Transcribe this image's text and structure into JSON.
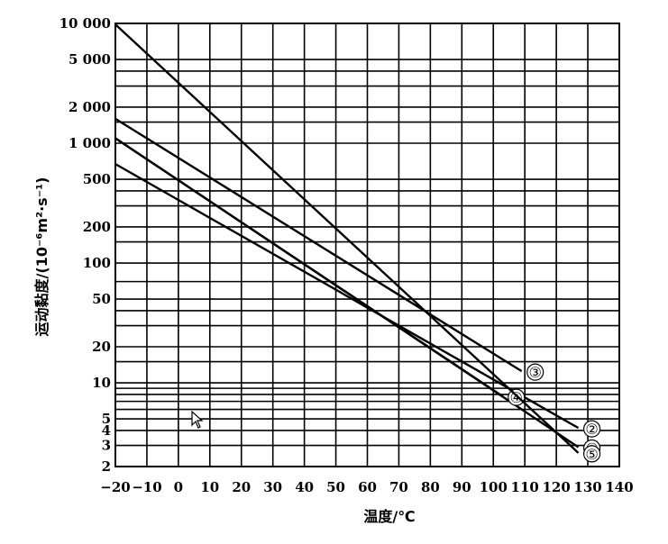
{
  "chart_data": {
    "type": "line",
    "title": "",
    "xlabel": "温度/℃",
    "ylabel": "运动黏度/(10⁻⁶m²·s⁻¹)",
    "y_scale": "log",
    "grid": true,
    "xlim": [
      -20,
      140
    ],
    "ylim": [
      2,
      10000
    ],
    "x_ticks": [
      -20,
      -10,
      0,
      10,
      20,
      30,
      40,
      50,
      60,
      70,
      80,
      90,
      100,
      110,
      120,
      130,
      140
    ],
    "x_tick_labels": [
      "−20",
      "−10",
      "0",
      "10",
      "20",
      "30",
      "40",
      "50",
      "60",
      "70",
      "80",
      "90",
      "100",
      "110",
      "120",
      "130",
      "140"
    ],
    "y_ticks": [
      2,
      3,
      4,
      5,
      10,
      20,
      50,
      100,
      200,
      500,
      1000,
      2000,
      5000,
      10000
    ],
    "y_tick_labels": [
      "2",
      "3",
      "4",
      "5",
      "10",
      "20",
      "50",
      "100",
      "200",
      "500",
      "1 000",
      "2 000",
      "5 000",
      "10 000"
    ],
    "y_gridlines": [
      2,
      3,
      4,
      5,
      6,
      7,
      8,
      9,
      10,
      15,
      20,
      30,
      40,
      50,
      70,
      100,
      150,
      200,
      300,
      400,
      500,
      1000,
      1500,
      2000,
      3000,
      4000,
      5000,
      10000
    ],
    "series": [
      {
        "name": "①",
        "x": [
          -20,
          127
        ],
        "y": [
          1100,
          2.9
        ]
      },
      {
        "name": "②",
        "x": [
          -20,
          127
        ],
        "y": [
          670,
          4.2
        ]
      },
      {
        "name": "③",
        "x": [
          -20,
          109
        ],
        "y": [
          1600,
          12.5
        ]
      },
      {
        "name": "④",
        "x": [
          -20,
          103
        ],
        "y": [
          1100,
          7.7
        ]
      },
      {
        "name": "⑤",
        "x": [
          -20,
          127
        ],
        "y": [
          9800,
          2.6
        ]
      }
    ]
  }
}
